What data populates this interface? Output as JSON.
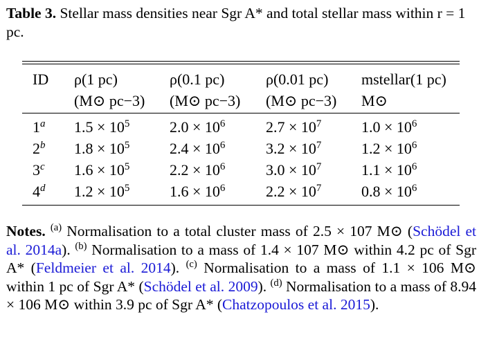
{
  "caption": {
    "label": "Table 3.",
    "text": "Stellar mass densities near Sgr A* and total stellar mass within r = 1 pc."
  },
  "table": {
    "headers": [
      {
        "line1": "ID",
        "line2": ""
      },
      {
        "line1": "ρ(1 pc)",
        "line2": "(M⊙ pc−3)"
      },
      {
        "line1": "ρ(0.1 pc)",
        "line2": "(M⊙ pc−3)"
      },
      {
        "line1": "ρ(0.01 pc)",
        "line2": "(M⊙ pc−3)"
      },
      {
        "line1": "mstellar(1 pc)",
        "line2": "M⊙"
      }
    ],
    "rows": [
      {
        "id": "1",
        "note": "a",
        "v1": "1.5 × 10",
        "e1": "5",
        "v2": "2.0 × 10",
        "e2": "6",
        "v3": "2.7 × 10",
        "e3": "7",
        "v4": "1.0 × 10",
        "e4": "6"
      },
      {
        "id": "2",
        "note": "b",
        "v1": "1.8 × 10",
        "e1": "5",
        "v2": "2.4 × 10",
        "e2": "6",
        "v3": "3.2 × 10",
        "e3": "7",
        "v4": "1.2 × 10",
        "e4": "6"
      },
      {
        "id": "3",
        "note": "c",
        "v1": "1.6 × 10",
        "e1": "5",
        "v2": "2.2 × 10",
        "e2": "6",
        "v3": "3.0 × 10",
        "e3": "7",
        "v4": "1.1 × 10",
        "e4": "6"
      },
      {
        "id": "4",
        "note": "d",
        "v1": "1.2 × 10",
        "e1": "5",
        "v2": "1.6 × 10",
        "e2": "6",
        "v3": "2.2 × 10",
        "e3": "7",
        "v4": "0.8 × 10",
        "e4": "6"
      }
    ]
  },
  "notes": {
    "label": "Notes.",
    "a_marker": "(a)",
    "a_text": "Normalisation to a total cluster mass of 2.5 × 107 M⊙",
    "a_ref": "Schödel et al. 2014a",
    "b_marker": "(b)",
    "b_text": "Normalisation to a mass of 1.4 × 107 M⊙ within 4.2 pc of Sgr A*",
    "b_ref": "Feldmeier et al. 2014",
    "c_marker": "(c)",
    "c_text": "Normalisation to a mass of 1.1 × 106 M⊙ within 1 pc of Sgr A*",
    "c_ref": "Schödel et al. 2009",
    "d_marker": "(d)",
    "d_text": "Normalisation to a mass of 8.94 × 106 M⊙ within 3.9 pc of Sgr A*",
    "d_ref": "Chatzopoulos et al. 2015",
    "link_color": "#1a1ad6"
  }
}
